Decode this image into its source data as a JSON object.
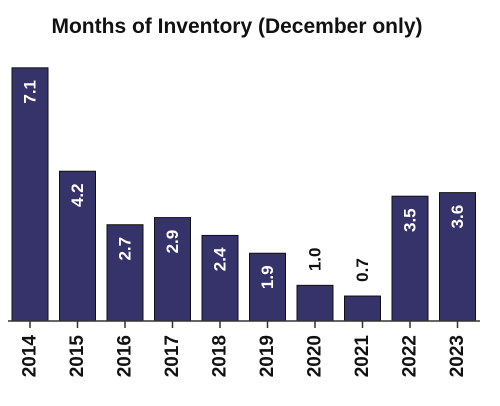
{
  "chart_data": {
    "type": "bar",
    "title": "Months of Inventory (December only)",
    "categories": [
      "2014",
      "2015",
      "2016",
      "2017",
      "2018",
      "2019",
      "2020",
      "2021",
      "2022",
      "2023"
    ],
    "values": [
      7.1,
      4.2,
      2.7,
      2.9,
      2.4,
      1.9,
      1.0,
      0.7,
      3.5,
      3.6
    ],
    "data_labels": [
      "7.1",
      "4.2",
      "2.7",
      "2.9",
      "2.4",
      "1.9",
      "1.0",
      "0.7",
      "3.5",
      "3.6"
    ],
    "xlabel": "",
    "ylabel": "",
    "ylim": [
      0,
      7.6
    ],
    "grid": false,
    "legend": "none",
    "colors": {
      "bar": "#35336a",
      "label_inside": "#ffffff",
      "label_outside": "#111111"
    }
  }
}
